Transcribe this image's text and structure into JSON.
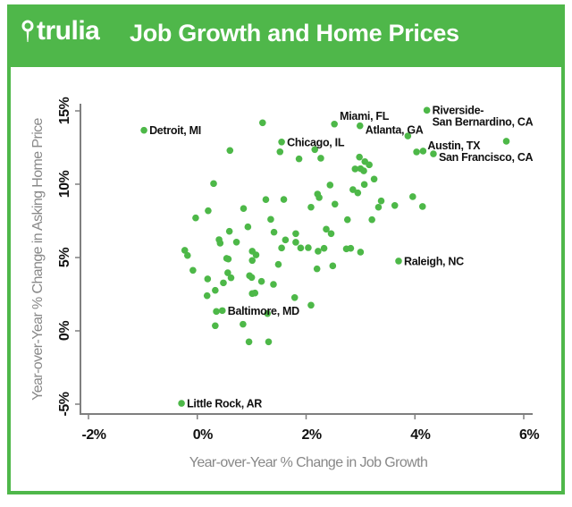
{
  "header": {
    "logo": "trulia",
    "title": "Job Growth and Home Prices"
  },
  "colors": {
    "brand": "#4fb74a",
    "point": "#4db848",
    "axis": "#7f7f7f"
  },
  "icons": {
    "logo_icon": "map-pin-icon"
  },
  "chart_data": {
    "type": "scatter",
    "title": "Job Growth and Home Prices",
    "xlabel": "Year-over-Year % Change in Job Growth",
    "ylabel": "Year-over-Year % Change in Asking Home Price",
    "xlim": [
      -2,
      6
    ],
    "ylim": [
      -5,
      15
    ],
    "xticks": [
      "-2%",
      "0%",
      "2%",
      "4%",
      "6%"
    ],
    "yticks": [
      "-5%",
      "0%",
      "5%",
      "10%",
      "15%"
    ],
    "grid": false,
    "points": [
      {
        "x": -0.98,
        "y": 13.68,
        "label": "Detroit, MI"
      },
      {
        "x": 1.55,
        "y": 12.88,
        "label": "Chicago, IL"
      },
      {
        "x": 2.52,
        "y": 14.1,
        "label": "Miami, FL"
      },
      {
        "x": 2.99,
        "y": 13.98,
        "label": "Atlanta, GA"
      },
      {
        "x": 4.22,
        "y": 15.04,
        "label": "Riverside-\nSan Bernardino, CA"
      },
      {
        "x": 4.15,
        "y": 12.26,
        "label": "Austin, TX"
      },
      {
        "x": 4.34,
        "y": 12.07,
        "label": "San Francisco, CA"
      },
      {
        "x": 3.7,
        "y": 4.76,
        "label": "Raleigh, NC"
      },
      {
        "x": 0.46,
        "y": 1.38,
        "label": "Baltimore, MD"
      },
      {
        "x": -0.29,
        "y": -4.94,
        "label": "Little Rock, AR"
      },
      {
        "x": 1.2,
        "y": 14.19
      },
      {
        "x": 0.6,
        "y": 12.3
      },
      {
        "x": 1.52,
        "y": 12.21
      },
      {
        "x": 1.87,
        "y": 11.73
      },
      {
        "x": 2.16,
        "y": 12.36
      },
      {
        "x": 2.27,
        "y": 11.77
      },
      {
        "x": 0.3,
        "y": 10.04
      },
      {
        "x": 1.26,
        "y": 8.95
      },
      {
        "x": 1.59,
        "y": 8.96
      },
      {
        "x": 2.21,
        "y": 9.33
      },
      {
        "x": 2.24,
        "y": 9.09
      },
      {
        "x": 2.09,
        "y": 8.43
      },
      {
        "x": 0.2,
        "y": 8.19
      },
      {
        "x": 0.85,
        "y": 8.34
      },
      {
        "x": -0.03,
        "y": 7.7
      },
      {
        "x": 1.35,
        "y": 7.6
      },
      {
        "x": 0.93,
        "y": 7.09
      },
      {
        "x": 0.59,
        "y": 6.79
      },
      {
        "x": 1.41,
        "y": 6.73
      },
      {
        "x": 1.81,
        "y": 6.63
      },
      {
        "x": 0.4,
        "y": 6.22
      },
      {
        "x": 0.42,
        "y": 5.98
      },
      {
        "x": 0.72,
        "y": 6.05
      },
      {
        "x": 1.62,
        "y": 6.2
      },
      {
        "x": 1.81,
        "y": 6.04
      },
      {
        "x": 1.55,
        "y": 5.65
      },
      {
        "x": 1.9,
        "y": 5.65
      },
      {
        "x": 2.04,
        "y": 5.67
      },
      {
        "x": 2.22,
        "y": 5.43
      },
      {
        "x": -0.23,
        "y": 5.49
      },
      {
        "x": -0.18,
        "y": 5.14
      },
      {
        "x": 0.54,
        "y": 4.94
      },
      {
        "x": 0.57,
        "y": 4.9
      },
      {
        "x": 1.01,
        "y": 5.43
      },
      {
        "x": 1.08,
        "y": 5.18
      },
      {
        "x": -0.08,
        "y": 4.13
      },
      {
        "x": 0.19,
        "y": 3.54
      },
      {
        "x": 0.33,
        "y": 2.76
      },
      {
        "x": 0.18,
        "y": 2.4
      },
      {
        "x": 0.48,
        "y": 3.27
      },
      {
        "x": 0.56,
        "y": 3.96
      },
      {
        "x": 0.62,
        "y": 3.62
      },
      {
        "x": 1.01,
        "y": 4.8
      },
      {
        "x": 1.49,
        "y": 4.53
      },
      {
        "x": 0.96,
        "y": 3.76
      },
      {
        "x": 1.0,
        "y": 3.64
      },
      {
        "x": 1.18,
        "y": 3.37
      },
      {
        "x": 1.4,
        "y": 3.17
      },
      {
        "x": 1.01,
        "y": 2.54
      },
      {
        "x": 1.06,
        "y": 2.58
      },
      {
        "x": 1.79,
        "y": 2.27
      },
      {
        "x": 2.09,
        "y": 1.75
      },
      {
        "x": 0.35,
        "y": 1.32
      },
      {
        "x": 1.29,
        "y": 1.18
      },
      {
        "x": 0.33,
        "y": 0.35
      },
      {
        "x": 0.84,
        "y": 0.45
      },
      {
        "x": 0.95,
        "y": -0.75
      },
      {
        "x": 1.31,
        "y": -0.75
      },
      {
        "x": 2.2,
        "y": 4.23
      },
      {
        "x": 2.49,
        "y": 4.43
      },
      {
        "x": 3.0,
        "y": 5.37
      },
      {
        "x": 2.74,
        "y": 5.59
      },
      {
        "x": 2.82,
        "y": 5.63
      },
      {
        "x": 2.33,
        "y": 5.63
      },
      {
        "x": 2.37,
        "y": 6.93
      },
      {
        "x": 2.46,
        "y": 6.63
      },
      {
        "x": 2.76,
        "y": 7.58
      },
      {
        "x": 3.21,
        "y": 7.58
      },
      {
        "x": 2.53,
        "y": 8.64
      },
      {
        "x": 3.33,
        "y": 8.43
      },
      {
        "x": 3.38,
        "y": 8.86
      },
      {
        "x": 3.63,
        "y": 8.55
      },
      {
        "x": 3.87,
        "y": 13.29
      },
      {
        "x": 5.68,
        "y": 12.93
      },
      {
        "x": 4.03,
        "y": 12.2
      },
      {
        "x": 2.98,
        "y": 11.85
      },
      {
        "x": 3.08,
        "y": 11.54
      },
      {
        "x": 3.16,
        "y": 11.32
      },
      {
        "x": 2.9,
        "y": 11.04
      },
      {
        "x": 3.0,
        "y": 11.06
      },
      {
        "x": 3.06,
        "y": 10.91
      },
      {
        "x": 3.25,
        "y": 10.35
      },
      {
        "x": 2.44,
        "y": 9.94
      },
      {
        "x": 3.07,
        "y": 9.98
      },
      {
        "x": 2.86,
        "y": 9.63
      },
      {
        "x": 2.95,
        "y": 9.41
      },
      {
        "x": 3.96,
        "y": 9.15
      },
      {
        "x": 4.14,
        "y": 8.48
      }
    ]
  }
}
